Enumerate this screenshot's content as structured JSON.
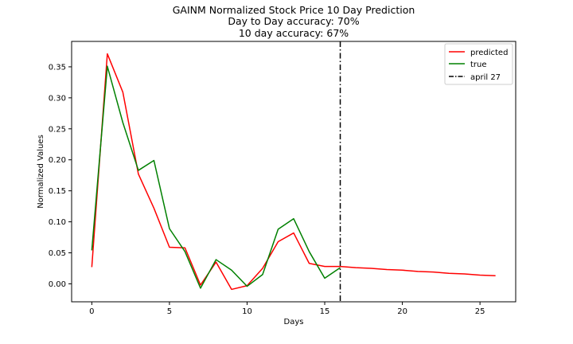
{
  "chart_data": {
    "type": "line",
    "title_lines": [
      "GAINM Normalized Stock Price 10 Day Prediction",
      "Day to Day accuracy: 70%",
      "10 day accuracy: 67%"
    ],
    "xlabel": "Days",
    "ylabel": "Normalized Values",
    "xlim": [
      -1.3,
      27.3
    ],
    "ylim": [
      -0.029,
      0.391
    ],
    "xticks": [
      0,
      5,
      10,
      15,
      20,
      25
    ],
    "xtick_labels": [
      "0",
      "5",
      "10",
      "15",
      "20",
      "25"
    ],
    "yticks": [
      0.0,
      0.05,
      0.1,
      0.15,
      0.2,
      0.25,
      0.3,
      0.35
    ],
    "ytick_labels": [
      "0.00",
      "0.05",
      "0.10",
      "0.15",
      "0.20",
      "0.25",
      "0.30",
      "0.35"
    ],
    "series": [
      {
        "name": "predicted",
        "color": "#ff0000",
        "x": [
          0,
          1,
          2,
          3,
          4,
          5,
          6,
          7,
          8,
          9,
          10,
          11,
          12,
          13,
          14,
          15,
          16,
          17,
          18,
          19,
          20,
          21,
          22,
          23,
          24,
          25,
          26
        ],
        "y": [
          0.027,
          0.371,
          0.309,
          0.177,
          0.122,
          0.059,
          0.058,
          -0.002,
          0.035,
          -0.009,
          -0.003,
          0.025,
          0.068,
          0.082,
          0.033,
          0.028,
          0.028,
          0.026,
          0.025,
          0.023,
          0.022,
          0.02,
          0.019,
          0.017,
          0.016,
          0.014,
          0.013
        ]
      },
      {
        "name": "true",
        "color": "#008000",
        "x": [
          0,
          1,
          2,
          3,
          4,
          5,
          6,
          7,
          8,
          9,
          10,
          11,
          12,
          13,
          14,
          15,
          16
        ],
        "y": [
          0.054,
          0.351,
          0.26,
          0.183,
          0.199,
          0.089,
          0.052,
          -0.007,
          0.039,
          0.022,
          -0.004,
          0.015,
          0.088,
          0.105,
          0.052,
          0.009,
          0.026
        ]
      }
    ],
    "vline": {
      "name": "april 27",
      "x": 16,
      "color": "#000000",
      "style": "dash-dot"
    },
    "legend_position": "top-right",
    "grid": false
  }
}
